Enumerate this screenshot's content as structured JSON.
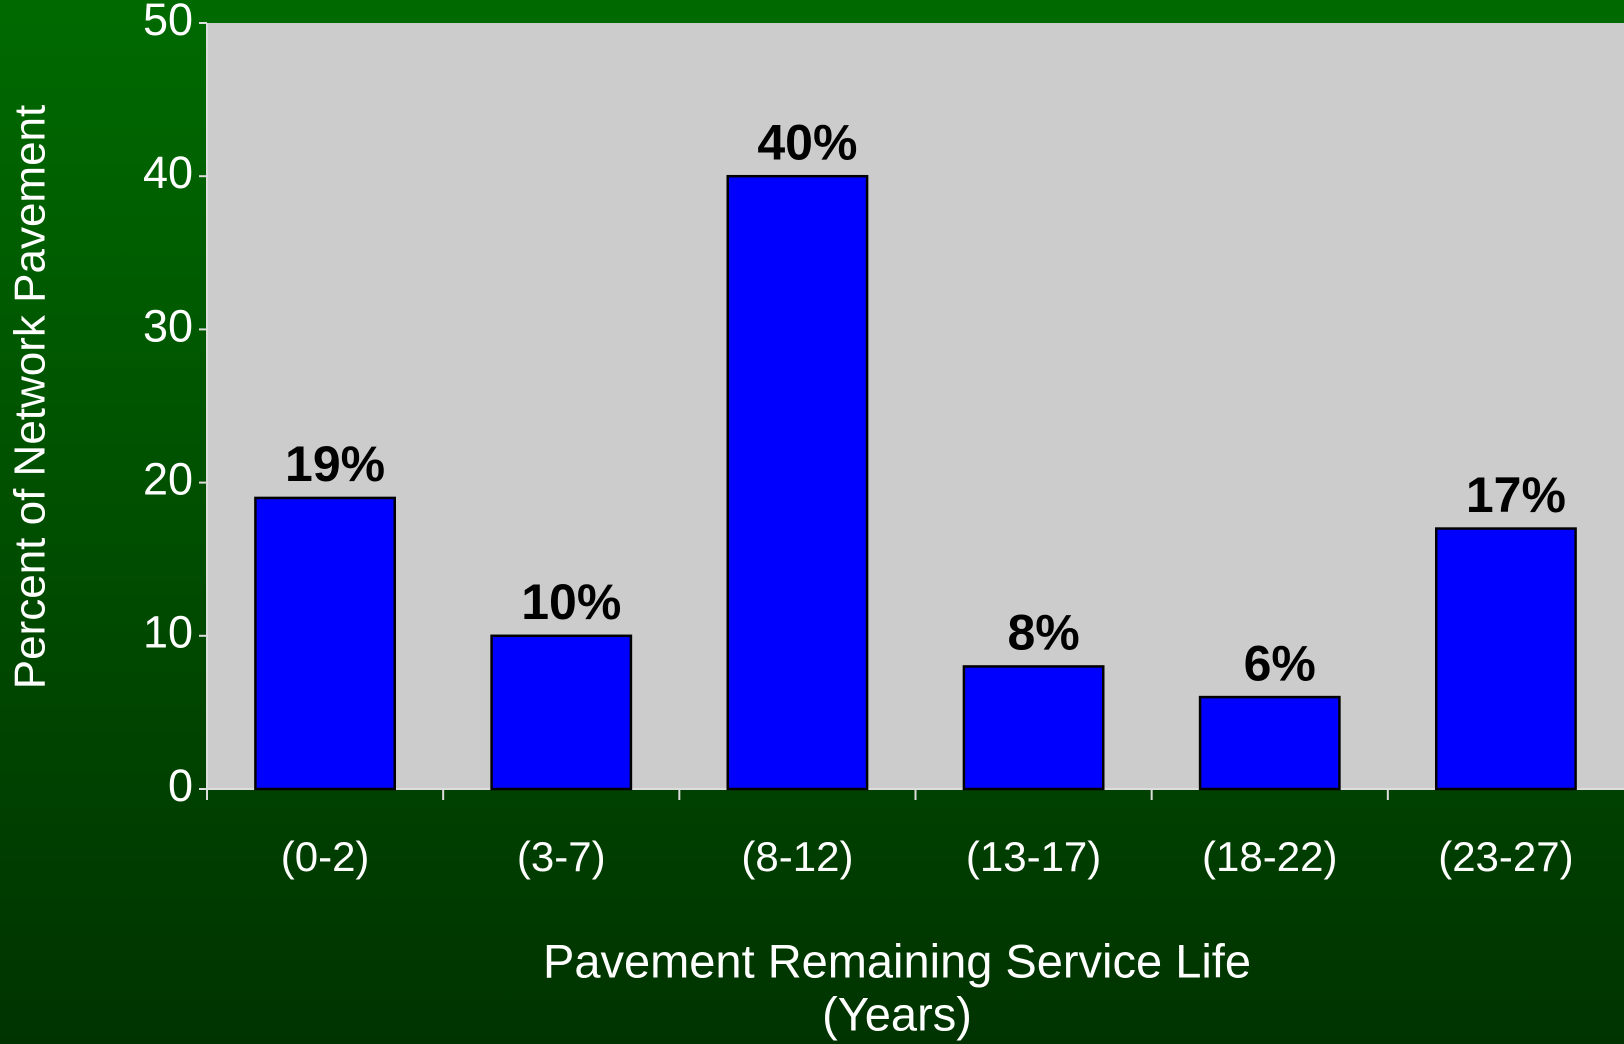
{
  "chart_data": {
    "type": "bar",
    "categories": [
      "(0-2)",
      "(3-7)",
      "(8-12)",
      "(13-17)",
      "(18-22)",
      "(23-27)"
    ],
    "values": [
      19,
      10,
      40,
      8,
      6,
      17
    ],
    "value_labels": [
      "19%",
      "10%",
      "40%",
      "8%",
      "6%",
      "17%"
    ],
    "color": "#0000ff",
    "x_label": [
      "Pavement Remaining Service Life",
      "(Years)"
    ],
    "y_label": "Percent of Network Pavement",
    "ylim": [
      0,
      50
    ],
    "yticks": [
      0,
      10,
      20,
      30,
      40,
      50
    ]
  }
}
